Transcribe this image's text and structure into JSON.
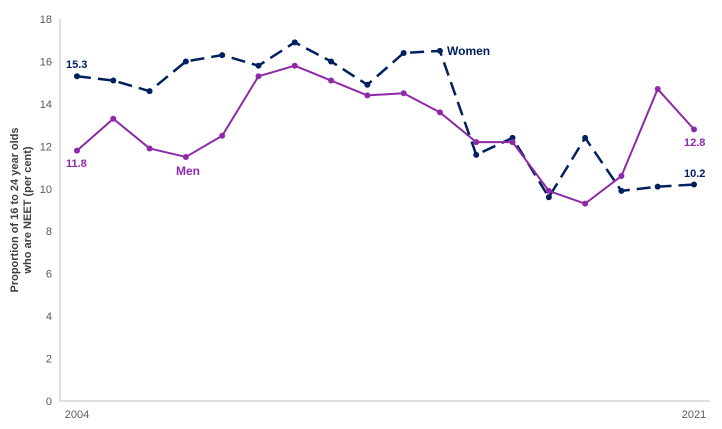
{
  "chart_data": {
    "type": "line",
    "ylabel_lines": [
      "Proportion of 16 to 24 year olds",
      "who are NEET (per cent)"
    ],
    "ylim": [
      0,
      18
    ],
    "yticks": [
      0,
      2,
      4,
      6,
      8,
      10,
      12,
      14,
      16,
      18
    ],
    "x": [
      2004,
      2005,
      2006,
      2007,
      2008,
      2009,
      2010,
      2011,
      2012,
      2013,
      2014,
      2015,
      2016,
      2017,
      2018,
      2019,
      2020,
      2021
    ],
    "xtick_labels": [
      "2004",
      "2021"
    ],
    "grid": false,
    "series": [
      {
        "name": "Women",
        "color": "#002060",
        "dashed": true,
        "values": [
          15.3,
          15.1,
          14.6,
          16.0,
          16.3,
          15.8,
          16.9,
          16.0,
          14.9,
          16.4,
          16.5,
          11.6,
          12.4,
          9.6,
          12.4,
          9.9,
          10.1,
          10.2
        ]
      },
      {
        "name": "Men",
        "color": "#8d2aa8",
        "dashed": false,
        "values": [
          11.8,
          13.3,
          11.9,
          11.5,
          12.5,
          15.3,
          15.8,
          15.1,
          14.4,
          14.5,
          13.6,
          12.2,
          12.2,
          9.9,
          9.3,
          10.6,
          14.7,
          12.8
        ]
      }
    ],
    "annotations": {
      "women_start": "15.3",
      "women_end": "10.2",
      "men_start": "11.8",
      "men_end": "12.8"
    }
  }
}
